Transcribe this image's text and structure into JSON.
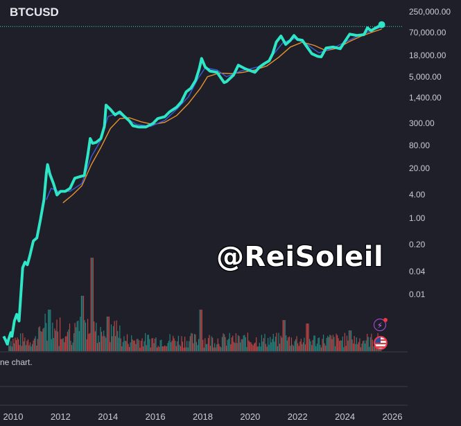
{
  "chart_data": {
    "type": "line",
    "title": "BTCUSD",
    "scale": "log",
    "y_ticks": [
      "250,000.00",
      "70,000.00",
      "18,000.00",
      "5,000.00",
      "1,400.00",
      "300.00",
      "80.00",
      "20.00",
      "4.00",
      "1.00",
      "0.20",
      "0.04",
      "0.01"
    ],
    "x_ticks": [
      "2010",
      "2012",
      "2014",
      "2016",
      "2018",
      "2020",
      "2022",
      "2024",
      "2026"
    ],
    "xlim": [
      2009.5,
      2026.3
    ],
    "ylim": [
      0.0012,
      250000
    ],
    "grid": false,
    "current_price_line": 103000,
    "series": [
      {
        "color": "#2ee6c6",
        "x": [
          2009.6,
          2009.7,
          2009.75,
          2009.82,
          2009.9,
          2009.95,
          2010.05,
          2010.15,
          2010.25,
          2010.4,
          2010.5,
          2010.6,
          2010.7,
          2010.85,
          2011.0,
          2011.15,
          2011.3,
          2011.4,
          2011.45,
          2011.55,
          2011.7,
          2011.85,
          2012.0,
          2012.2,
          2012.4,
          2012.6,
          2012.8,
          2013.0,
          2013.15,
          2013.25,
          2013.35,
          2013.5,
          2013.7,
          2013.85,
          2013.92,
          2014.1,
          2014.3,
          2014.5,
          2014.7,
          2014.9,
          2015.05,
          2015.3,
          2015.6,
          2015.9,
          2016.1,
          2016.4,
          2016.6,
          2016.9,
          2017.1,
          2017.3,
          2017.5,
          2017.7,
          2017.85,
          2017.95,
          2018.1,
          2018.3,
          2018.6,
          2018.9,
          2019.0,
          2019.3,
          2019.5,
          2019.8,
          2020.0,
          2020.2,
          2020.4,
          2020.6,
          2020.8,
          2020.95,
          2021.1,
          2021.3,
          2021.5,
          2021.7,
          2021.85,
          2022.0,
          2022.2,
          2022.4,
          2022.6,
          2022.85,
          2023.0,
          2023.2,
          2023.5,
          2023.8,
          2024.0,
          2024.2,
          2024.5,
          2024.8,
          2024.95,
          2025.1,
          2025.3,
          2025.55
        ],
        "values": [
          0.0008,
          0.0006,
          0.0005,
          0.0007,
          0.001,
          0.0008,
          0.002,
          0.003,
          0.002,
          0.05,
          0.07,
          0.06,
          0.1,
          0.25,
          0.3,
          0.9,
          3,
          15,
          25,
          14,
          8,
          4,
          5,
          5,
          6,
          11,
          12,
          13,
          45,
          120,
          90,
          95,
          120,
          250,
          900,
          700,
          500,
          600,
          450,
          350,
          260,
          240,
          240,
          300,
          400,
          450,
          600,
          800,
          1100,
          2000,
          2500,
          4000,
          8000,
          15000,
          9000,
          7000,
          6500,
          3500,
          3700,
          5500,
          10000,
          8000,
          7200,
          6500,
          9000,
          11000,
          13000,
          20000,
          40000,
          58000,
          35000,
          45000,
          60000,
          47000,
          45000,
          30000,
          20000,
          17000,
          16500,
          28000,
          30000,
          27000,
          42000,
          65000,
          60000,
          63000,
          95000,
          80000,
          95000,
          115000
        ]
      },
      {
        "color": "#3a5bd9",
        "x": [
          2011.4,
          2011.6,
          2011.9,
          2012.4,
          2012.9,
          2013.3,
          2013.7,
          2014.0,
          2014.4,
          2014.8,
          2015.2,
          2015.8,
          2016.4,
          2016.9,
          2017.4,
          2017.8,
          2018.1,
          2018.6,
          2019.0,
          2019.6,
          2020.0,
          2020.6,
          2021.0,
          2021.4,
          2021.9,
          2022.4,
          2022.9,
          2023.5,
          2024.0,
          2024.6,
          2025.0,
          2025.55
        ],
        "values": [
          3,
          6,
          5,
          5,
          8,
          40,
          110,
          450,
          560,
          400,
          280,
          250,
          360,
          700,
          1500,
          4500,
          8500,
          7500,
          5000,
          7000,
          8000,
          10000,
          20000,
          40000,
          50000,
          35000,
          21000,
          28000,
          40000,
          60000,
          75000,
          100000
        ]
      },
      {
        "color": "#e8922f",
        "x": [
          2012.1,
          2012.5,
          2012.9,
          2013.3,
          2013.7,
          2014.1,
          2014.5,
          2014.9,
          2015.4,
          2015.9,
          2016.4,
          2016.9,
          2017.4,
          2017.9,
          2018.2,
          2018.7,
          2019.2,
          2019.7,
          2020.2,
          2020.7,
          2021.2,
          2021.7,
          2022.2,
          2022.7,
          2023.2,
          2023.7,
          2024.2,
          2024.7,
          2025.2,
          2025.55
        ],
        "values": [
          2.5,
          4,
          7,
          25,
          70,
          220,
          400,
          420,
          330,
          280,
          320,
          480,
          1000,
          2500,
          5000,
          6200,
          6000,
          6500,
          7500,
          9500,
          16000,
          30000,
          40000,
          33000,
          24000,
          28000,
          42000,
          58000,
          75000,
          88000
        ]
      }
    ],
    "volume": {
      "start": 2009.8,
      "end": 2025.55,
      "color_up": "#26a69a",
      "color_down": "#ef5350"
    }
  },
  "note": "ne chart.",
  "watermark": "@ReiSoleil"
}
